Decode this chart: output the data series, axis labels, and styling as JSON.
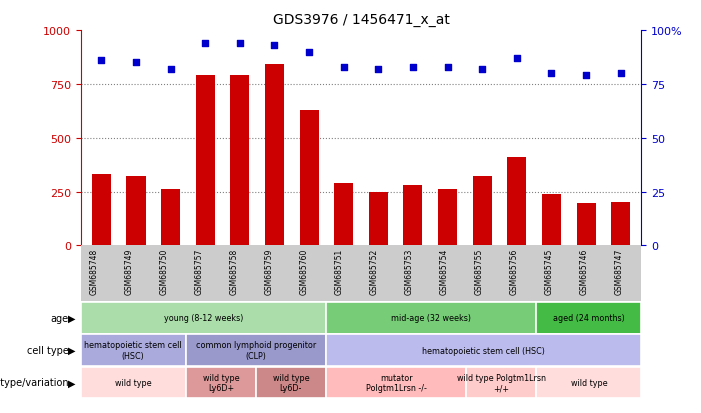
{
  "title": "GDS3976 / 1456471_x_at",
  "samples": [
    "GSM685748",
    "GSM685749",
    "GSM685750",
    "GSM685757",
    "GSM685758",
    "GSM685759",
    "GSM685760",
    "GSM685751",
    "GSM685752",
    "GSM685753",
    "GSM685754",
    "GSM685755",
    "GSM685756",
    "GSM685745",
    "GSM685746",
    "GSM685747"
  ],
  "bar_values": [
    330,
    320,
    260,
    790,
    790,
    840,
    630,
    290,
    250,
    280,
    260,
    320,
    410,
    240,
    195,
    200
  ],
  "dot_values": [
    86,
    85,
    82,
    94,
    94,
    93,
    90,
    83,
    82,
    83,
    83,
    82,
    87,
    80,
    79,
    80
  ],
  "bar_color": "#cc0000",
  "dot_color": "#0000cc",
  "ylim_left": [
    0,
    1000
  ],
  "ylim_right": [
    0,
    100
  ],
  "yticks_left": [
    0,
    250,
    500,
    750,
    1000
  ],
  "yticks_right": [
    0,
    25,
    50,
    75,
    100
  ],
  "grid_vals": [
    250,
    500,
    750
  ],
  "age_rows": [
    {
      "label": "young (8-12 weeks)",
      "start": 0,
      "end": 7,
      "color": "#aaddaa"
    },
    {
      "label": "mid-age (32 weeks)",
      "start": 7,
      "end": 13,
      "color": "#77cc77"
    },
    {
      "label": "aged (24 months)",
      "start": 13,
      "end": 16,
      "color": "#44bb44"
    }
  ],
  "celltype_rows": [
    {
      "label": "hematopoietic stem cell\n(HSC)",
      "start": 0,
      "end": 3,
      "color": "#aaaadd"
    },
    {
      "label": "common lymphoid progenitor\n(CLP)",
      "start": 3,
      "end": 7,
      "color": "#9999cc"
    },
    {
      "label": "hematopoietic stem cell (HSC)",
      "start": 7,
      "end": 16,
      "color": "#bbbbee"
    }
  ],
  "genotype_rows": [
    {
      "label": "wild type",
      "start": 0,
      "end": 3,
      "color": "#ffdddd"
    },
    {
      "label": "wild type\nLy6D+",
      "start": 3,
      "end": 5,
      "color": "#dd9999"
    },
    {
      "label": "wild type\nLy6D-",
      "start": 5,
      "end": 7,
      "color": "#cc8888"
    },
    {
      "label": "mutator\nPolgtm1Lrsn -/-",
      "start": 7,
      "end": 11,
      "color": "#ffbbbb"
    },
    {
      "label": "wild type Polgtm1Lrsn\n+/+",
      "start": 11,
      "end": 13,
      "color": "#ffcccc"
    },
    {
      "label": "wild type",
      "start": 13,
      "end": 16,
      "color": "#ffdddd"
    }
  ],
  "row_labels": [
    "age",
    "cell type",
    "genotype/variation"
  ],
  "legend_count_color": "#cc0000",
  "legend_dot_color": "#0000cc",
  "background_color": "#ffffff",
  "xtick_bg_color": "#cccccc"
}
